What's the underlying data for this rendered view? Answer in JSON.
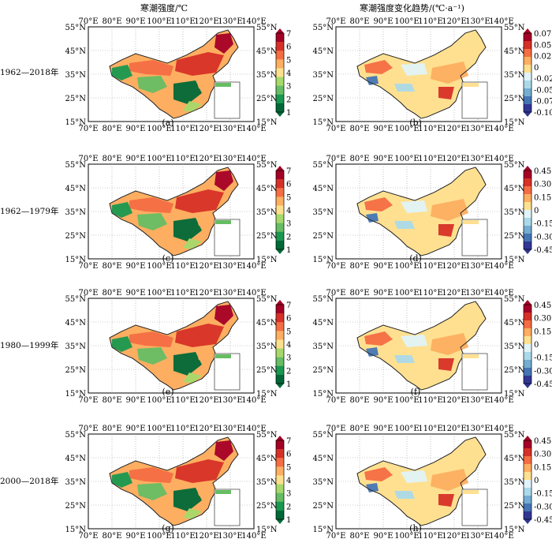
{
  "column_titles": {
    "left": "寒潮强度/℃",
    "right": "寒潮强度变化趋势/(℃·a⁻¹)"
  },
  "row_labels": [
    "1962—2018年",
    "1962—1979年",
    "1980—1999年",
    "2000—2018年"
  ],
  "lon_ticks": [
    "70°E",
    "80°E",
    "90°E",
    "100°E",
    "110°E",
    "120°E",
    "130°E",
    "140°E"
  ],
  "lat_ticks": [
    "55°N",
    "45°N",
    "35°N",
    "25°N",
    "15°N"
  ],
  "colorbars": {
    "intensity": {
      "labels": [
        "7",
        "6",
        "5",
        "4",
        "3",
        "2",
        "1"
      ],
      "colors": [
        "#a50026",
        "#d73027",
        "#f46d43",
        "#fdae61",
        "#fee08b",
        "#a6d96a",
        "#66bd63",
        "#1a9850",
        "#006837"
      ]
    },
    "trend_a": {
      "labels": [
        "0.075",
        "0.050",
        "0.025",
        "0",
        "-0.025",
        "-0.050",
        "-0.075",
        "-0.100"
      ],
      "colors": [
        "#a50026",
        "#d73027",
        "#f46d43",
        "#fdae61",
        "#fee090",
        "#e0f3f8",
        "#abd9e9",
        "#74add1",
        "#4575b4",
        "#313695"
      ]
    },
    "trend_b": {
      "labels": [
        "0.45",
        "0.30",
        "0.15",
        "0",
        "-0.15",
        "-0.30",
        "-0.45"
      ],
      "colors": [
        "#a50026",
        "#d73027",
        "#f46d43",
        "#fdae61",
        "#fee090",
        "#e0f3f8",
        "#abd9e9",
        "#74add1",
        "#4575b4",
        "#313695"
      ]
    }
  },
  "panels": [
    {
      "caption": "(a)",
      "colorbar": "intensity"
    },
    {
      "caption": "(b)",
      "colorbar": "trend_a"
    },
    {
      "caption": "(c)",
      "colorbar": "intensity"
    },
    {
      "caption": "(d)",
      "colorbar": "trend_b"
    },
    {
      "caption": "(e)",
      "colorbar": "intensity"
    },
    {
      "caption": "(f)",
      "colorbar": "trend_b"
    },
    {
      "caption": "(g)",
      "colorbar": "intensity"
    },
    {
      "caption": "(h)",
      "colorbar": "trend_b"
    }
  ]
}
